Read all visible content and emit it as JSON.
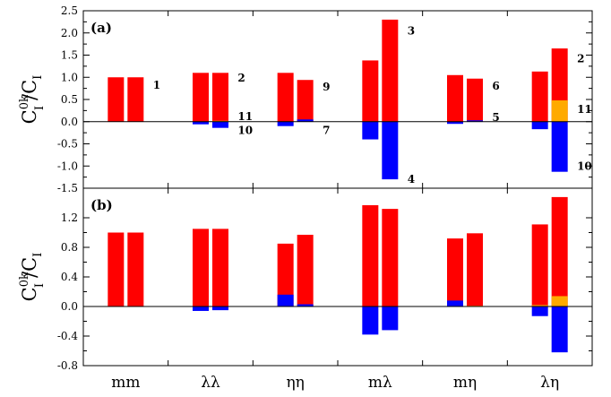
{
  "chart_data": {
    "type": "bar",
    "stacked": true,
    "ylabel": {
      "main": "C",
      "sup": "0k",
      "sub": "I",
      "slash": "/",
      "main2": "C",
      "sub2": "I"
    },
    "categories": [
      "mm",
      "λλ",
      "ηη",
      "mλ",
      "mη",
      "λη"
    ],
    "colors": {
      "red": "#ff0000",
      "blue": "#0000ff",
      "orange": "#ffaa00"
    },
    "panels": [
      {
        "label": "(a)",
        "ylim": [
          -1.5,
          2.5
        ],
        "yticks": [
          -1.5,
          -1.0,
          -0.5,
          0.0,
          0.5,
          1.0,
          1.5,
          2.0,
          2.5
        ],
        "tick_labels": [
          "-1.5",
          "-1.0",
          "-0.5",
          "0.0",
          "0.5",
          "1.0",
          "1.5",
          "2.0",
          "2.5"
        ],
        "bars": [
          {
            "category": 0,
            "pos": 0,
            "red": 1.0,
            "blue": 0.0,
            "orange": 0.0
          },
          {
            "category": 0,
            "pos": 1,
            "red": 1.0,
            "blue": 0.0,
            "orange": 0.0
          },
          {
            "category": 1,
            "pos": 0,
            "red": 1.1,
            "blue": -0.06,
            "orange": 0.0
          },
          {
            "category": 1,
            "pos": 1,
            "red": 1.1,
            "blue": -0.14,
            "orange": 0.02
          },
          {
            "category": 2,
            "pos": 0,
            "red": 1.1,
            "blue": -0.1,
            "orange": 0.0
          },
          {
            "category": 2,
            "pos": 1,
            "red": 0.94,
            "blue": 0.05,
            "orange": 0.0
          },
          {
            "category": 3,
            "pos": 0,
            "red": 1.38,
            "blue": -0.4,
            "orange": 0.0
          },
          {
            "category": 3,
            "pos": 1,
            "red": 2.3,
            "blue": -1.3,
            "orange": 0.0
          },
          {
            "category": 4,
            "pos": 0,
            "red": 1.05,
            "blue": -0.05,
            "orange": 0.0
          },
          {
            "category": 4,
            "pos": 1,
            "red": 0.97,
            "blue": 0.03,
            "orange": 0.0
          },
          {
            "category": 5,
            "pos": 0,
            "red": 1.13,
            "blue": -0.17,
            "orange": 0.0
          },
          {
            "category": 5,
            "pos": 1,
            "red": 1.65,
            "blue": -1.13,
            "orange": 0.48
          }
        ],
        "annotations": [
          {
            "text": "1",
            "x": 0.8,
            "y": 0.82
          },
          {
            "text": "2",
            "x": 1.8,
            "y": 0.98
          },
          {
            "text": "11",
            "x": 1.8,
            "y": 0.12
          },
          {
            "text": "10",
            "x": 1.8,
            "y": -0.2
          },
          {
            "text": "9",
            "x": 2.8,
            "y": 0.78
          },
          {
            "text": "7",
            "x": 2.8,
            "y": -0.2
          },
          {
            "text": "3",
            "x": 3.8,
            "y": 2.05
          },
          {
            "text": "4",
            "x": 3.8,
            "y": -1.3
          },
          {
            "text": "6",
            "x": 4.8,
            "y": 0.8
          },
          {
            "text": "5",
            "x": 4.8,
            "y": 0.1
          },
          {
            "text": "2",
            "x": 5.8,
            "y": 1.42
          },
          {
            "text": "11",
            "x": 5.8,
            "y": 0.28
          },
          {
            "text": "10",
            "x": 5.8,
            "y": -1.0
          }
        ]
      },
      {
        "label": "(b)",
        "ylim": [
          -0.8,
          1.6
        ],
        "yticks": [
          -0.8,
          -0.4,
          0.0,
          0.4,
          0.8,
          1.2
        ],
        "tick_labels": [
          "-0.8",
          "-0.4",
          "0.0",
          "0.4",
          "0.8",
          "1.2"
        ],
        "bars": [
          {
            "category": 0,
            "pos": 0,
            "red": 1.0,
            "blue": 0.0,
            "orange": 0.0
          },
          {
            "category": 0,
            "pos": 1,
            "red": 1.0,
            "blue": 0.0,
            "orange": 0.0
          },
          {
            "category": 1,
            "pos": 0,
            "red": 1.05,
            "blue": -0.06,
            "orange": 0.0
          },
          {
            "category": 1,
            "pos": 1,
            "red": 1.05,
            "blue": -0.05,
            "orange": 0.0
          },
          {
            "category": 2,
            "pos": 0,
            "red": 0.85,
            "blue": 0.16,
            "orange": 0.0
          },
          {
            "category": 2,
            "pos": 1,
            "red": 0.97,
            "blue": 0.03,
            "orange": 0.0
          },
          {
            "category": 3,
            "pos": 0,
            "red": 1.37,
            "blue": -0.38,
            "orange": 0.0
          },
          {
            "category": 3,
            "pos": 1,
            "red": 1.32,
            "blue": -0.32,
            "orange": 0.0
          },
          {
            "category": 4,
            "pos": 0,
            "red": 0.92,
            "blue": 0.08,
            "orange": 0.0
          },
          {
            "category": 4,
            "pos": 1,
            "red": 0.99,
            "blue": 0.0,
            "orange": 0.01
          },
          {
            "category": 5,
            "pos": 0,
            "red": 1.11,
            "blue": -0.13,
            "orange": 0.02
          },
          {
            "category": 5,
            "pos": 1,
            "red": 1.48,
            "blue": -0.62,
            "orange": 0.14
          }
        ],
        "annotations": []
      }
    ]
  }
}
